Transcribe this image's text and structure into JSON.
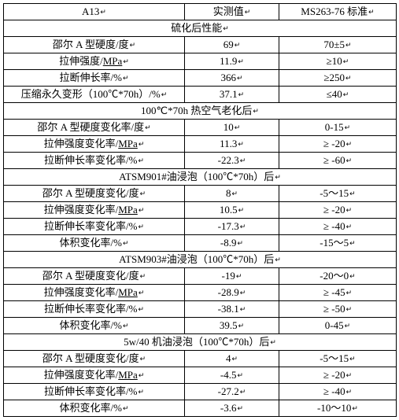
{
  "header": {
    "col1": "A13",
    "col2": "实测值",
    "col3": "MS263-76 标准"
  },
  "sections": [
    {
      "title": "硫化后性能",
      "rows": [
        {
          "label": "邵尔 A 型硬度/度",
          "val": "69",
          "std": "70±5"
        },
        {
          "label": "拉伸强度/MPa",
          "val": "11.9",
          "std": "≥10",
          "u": true
        },
        {
          "label": "拉断伸长率/%",
          "val": "366",
          "std": "≥250"
        },
        {
          "label": "压缩永久变形（100℃*70h）/%",
          "val": "37.1",
          "std": "≤40"
        }
      ]
    },
    {
      "title": "100℃*70h 热空气老化后",
      "rows": [
        {
          "label": "邵尔 A 型硬度变化率/度",
          "val": "10",
          "std": "0-15"
        },
        {
          "label": "拉伸强度变化率/MPa",
          "val": "11.3",
          "std": "≥ -20",
          "u": true
        },
        {
          "label": "拉断伸长率变化率/%",
          "val": "-22.3",
          "std": "≥ -60"
        }
      ]
    },
    {
      "title": "ATSM901#油浸泡（100℃*70h）后",
      "rows": [
        {
          "label": "邵尔 A 型硬度变化/度",
          "val": "8",
          "std": "-5～15"
        },
        {
          "label": "拉伸强度变化率/MPa",
          "val": "10.5",
          "std": "≥ -20",
          "u": true
        },
        {
          "label": "拉断伸长率变化率/%",
          "val": "-17.3",
          "std": "≥ -40"
        },
        {
          "label": "体积变化率/%",
          "val": "-8.9",
          "std": "-15～5"
        }
      ]
    },
    {
      "title": "ATSM903#油浸泡（100℃*70h）后",
      "rows": [
        {
          "label": "邵尔 A 型硬度变化/度",
          "val": "-19",
          "std": "-20～0"
        },
        {
          "label": "拉伸强度变化率/MPa",
          "val": "-28.9",
          "std": "≥ -45",
          "u": true
        },
        {
          "label": "拉断伸长率变化率/%",
          "val": "-38.1",
          "std": "≥ -50"
        },
        {
          "label": "体积变化率/%",
          "val": "39.5",
          "std": "0-45"
        }
      ]
    },
    {
      "title": "5w/40 机油浸泡（100℃*70h）后",
      "rows": [
        {
          "label": "邵尔 A 型硬度变化/度",
          "val": "4",
          "std": "-5～15"
        },
        {
          "label": "拉伸强度变化率/MPa",
          "val": "-4.5",
          "std": "≥ -20",
          "u": true
        },
        {
          "label": "拉断伸长率变化率/%",
          "val": "-27.2",
          "std": "≥ -40"
        },
        {
          "label": "体积变化率/%",
          "val": "-3.6",
          "std": "-10～10"
        }
      ]
    }
  ]
}
